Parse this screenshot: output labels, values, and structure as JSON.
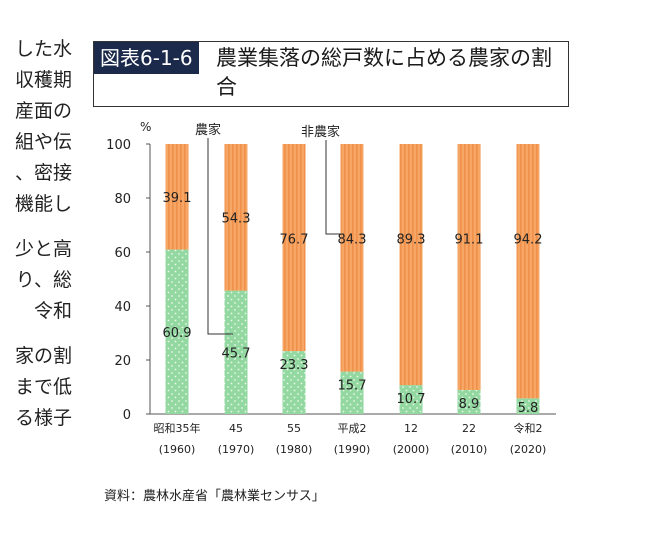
{
  "side_text": {
    "lines_a": [
      "した水",
      "収穫期",
      "産面の",
      "組や伝",
      "、密接",
      "機能し"
    ],
    "lines_b": [
      "少と高",
      "り、総",
      "令和"
    ],
    "lines_c": [
      "家の割",
      "まで低",
      "る様子"
    ]
  },
  "figure": {
    "number": "図表6-1-6",
    "title": "農業集落の総戸数に占める農家の割合",
    "source": "資料：農林水産省「農林業センサス」"
  },
  "chart_data": {
    "type": "bar",
    "stacked": true,
    "ylabel": "%",
    "ylim": [
      0,
      100
    ],
    "yticks": [
      0,
      20,
      40,
      60,
      80,
      100
    ],
    "categories": [
      [
        "昭和35年",
        "(1960)"
      ],
      [
        "45",
        "(1970)"
      ],
      [
        "55",
        "(1980)"
      ],
      [
        "平成2",
        "(1990)"
      ],
      [
        "12",
        "(2000)"
      ],
      [
        "22",
        "(2010)"
      ],
      [
        "令和2",
        "(2020)"
      ]
    ],
    "series": [
      {
        "name": "農家",
        "values": [
          60.9,
          45.7,
          23.3,
          15.7,
          10.7,
          8.9,
          5.8
        ],
        "color": "#93d8a0",
        "pattern": "dots"
      },
      {
        "name": "非農家",
        "values": [
          39.1,
          54.3,
          76.7,
          84.3,
          89.3,
          91.1,
          94.2
        ],
        "color": "#f6a766",
        "pattern": "vertical-stripes"
      }
    ],
    "grid": false
  }
}
